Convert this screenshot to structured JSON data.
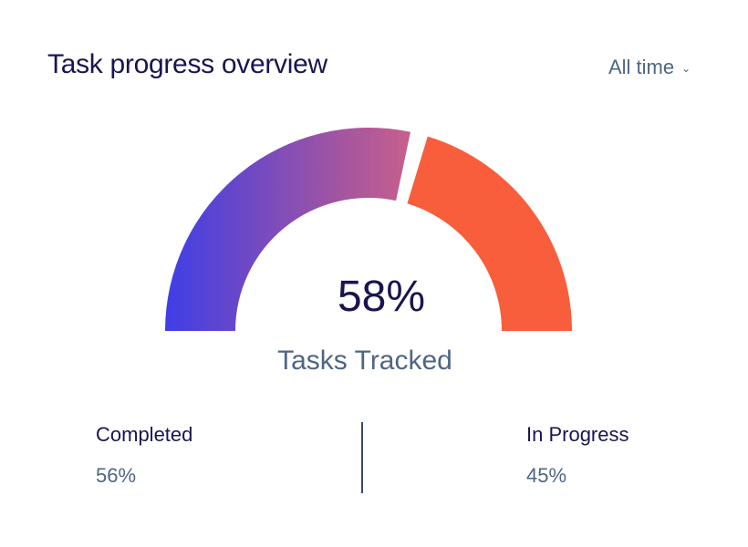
{
  "header": {
    "title": "Task progress overview",
    "filter_label": "All time",
    "filter_icon": "chevron-down-icon"
  },
  "gauge": {
    "center_value": "58%",
    "center_label": "Tasks Tracked",
    "filled_fraction": 0.58,
    "segments": [
      {
        "name": "tracked",
        "fraction": 0.58,
        "gradient": [
          "#3f3ee6",
          "#a355a0",
          "#ee6a78"
        ]
      },
      {
        "name": "remaining",
        "fraction": 0.42,
        "color": "#f85e3c"
      }
    ]
  },
  "stats": {
    "completed": {
      "label": "Completed",
      "value": "56%"
    },
    "in_progress": {
      "label": "In Progress",
      "value": "45%"
    }
  },
  "colors": {
    "title": "#1a1550",
    "muted": "#4f6585",
    "divider": "#3c4a64",
    "accent_start": "#3f3ee6",
    "accent_end": "#ee6a78",
    "remaining": "#f85e3c"
  }
}
